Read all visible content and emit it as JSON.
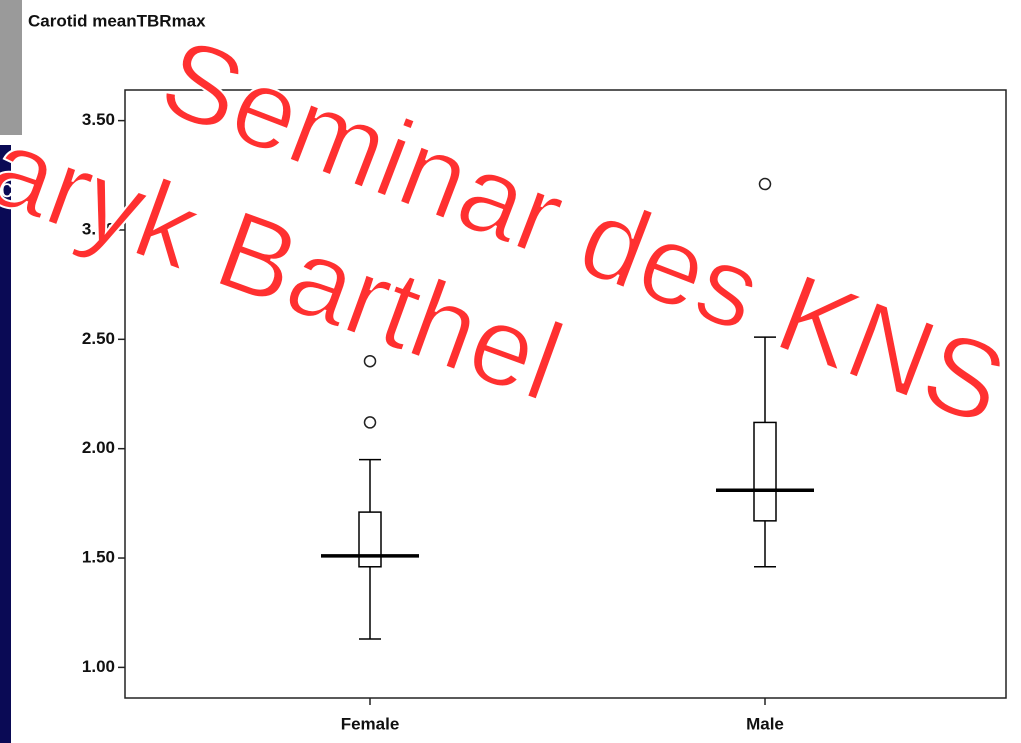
{
  "chart_data": {
    "type": "box",
    "title": "Carotid meanTBRmax",
    "categories": [
      "Female",
      "Male"
    ],
    "boxes": [
      {
        "whislo": 1.13,
        "q1": 1.46,
        "med": 1.51,
        "q3": 1.71,
        "whishi": 1.95,
        "fliers": [
          2.12,
          2.4
        ]
      },
      {
        "whislo": 1.46,
        "q1": 1.67,
        "med": 1.81,
        "q3": 2.12,
        "whishi": 2.51,
        "fliers": [
          3.21
        ]
      }
    ],
    "color": "#000000",
    "ylim": [
      0.86,
      3.64
    ],
    "yticks": [
      {
        "value": 1,
        "label": "1.00"
      },
      {
        "value": 1.5,
        "label": "1.50"
      },
      {
        "value": 2,
        "label": "2.00"
      },
      {
        "value": 2.5,
        "label": "2.50"
      },
      {
        "value": 3,
        "label": "3.00"
      },
      {
        "value": 3.5,
        "label": "3.50"
      }
    ],
    "grid": false,
    "annotations": [
      "Seminar des KNS",
      "aryk Barthel",
      "c"
    ]
  }
}
